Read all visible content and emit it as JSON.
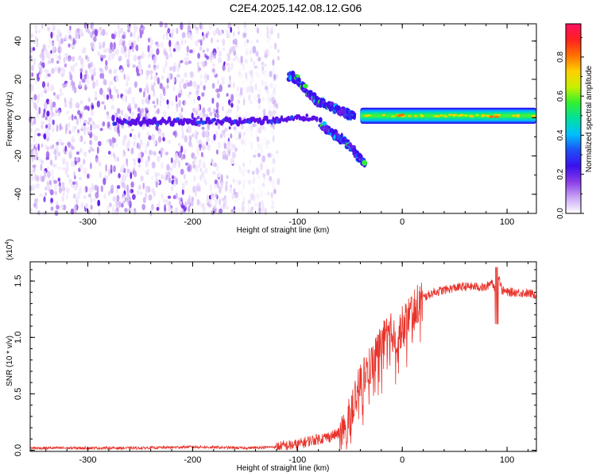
{
  "title": "C2E4.2025.142.08.12.G06",
  "chart_data": [
    {
      "type": "heatmap",
      "xlabel": "Height of straight line (km)",
      "ylabel": "Frequency (Hz)",
      "xlim": [
        -355,
        128
      ],
      "ylim": [
        -50,
        49
      ],
      "xticks": [
        -300,
        -200,
        -100,
        0,
        100
      ],
      "xtick_labels": [
        "-300",
        "-200",
        "-100",
        "0",
        "100"
      ],
      "yticks": [
        -40,
        -20,
        0,
        20,
        40
      ],
      "ytick_labels": [
        "-40",
        "-20",
        "0",
        "20",
        "40"
      ],
      "colorbar": {
        "label": "Normalized spectral amplitude",
        "range": [
          0,
          0.97
        ],
        "ticks": [
          0,
          0.2,
          0.4,
          0.6,
          0.8
        ],
        "tick_labels": [
          "0.0",
          "0.2",
          "0.4",
          "0.6",
          "0.8"
        ],
        "colors": [
          "#ffffff",
          "#c9a6f5",
          "#8a3ce6",
          "#3a10f0",
          "#1e4ff5",
          "#00c0ff",
          "#00e0a0",
          "#30f030",
          "#c8f000",
          "#ffd000",
          "#ff7000",
          "#ff2020",
          "#ff1060"
        ]
      },
      "features": [
        {
          "name": "noise",
          "x_range": [
            -355,
            -118
          ],
          "y_range": [
            -50,
            49
          ]
        },
        {
          "name": "carrier-line",
          "x_range": [
            -40,
            128
          ],
          "y_center": 1,
          "half_width": 3
        },
        {
          "name": "branch-upper",
          "points": [
            [
              -108,
              22
            ],
            [
              -100,
              20
            ],
            [
              -93,
              15
            ],
            [
              -82,
              9
            ],
            [
              -70,
              6
            ],
            [
              -60,
              4
            ],
            [
              -52,
              2
            ],
            [
              -45,
              0
            ]
          ]
        },
        {
          "name": "branch-lower",
          "points": [
            [
              -78,
              -3
            ],
            [
              -68,
              -8
            ],
            [
              -58,
              -11
            ],
            [
              -50,
              -15
            ],
            [
              -42,
              -20
            ],
            [
              -35,
              -24
            ]
          ]
        },
        {
          "name": "central-streak",
          "points": [
            [
              -275,
              -2
            ],
            [
              -200,
              -2
            ],
            [
              -150,
              -2
            ],
            [
              -120,
              -1
            ],
            [
              -100,
              0
            ],
            [
              -80,
              0
            ]
          ]
        }
      ]
    },
    {
      "type": "line",
      "xlabel": "Height of straight line (km)",
      "ylabel": "SNR (10 * v/v)",
      "ymultiplier": "(x10",
      "ymultiplier_exp": "4",
      "ymultiplier_close": ")",
      "xlim": [
        -355,
        128
      ],
      "ylim": [
        -0.01,
        1.67
      ],
      "xticks": [
        -300,
        -200,
        -100,
        0,
        100
      ],
      "xtick_labels": [
        "-300",
        "-200",
        "-100",
        "0",
        "100"
      ],
      "yticks": [
        0,
        0.5,
        1.0,
        1.5
      ],
      "ytick_labels": [
        "0.0",
        "0.5",
        "1.0",
        "1.5"
      ],
      "color": "#e8322a",
      "series": [
        {
          "x": [
            -355,
            -300,
            -250,
            -200,
            -150,
            -120,
            -100,
            -90,
            -80,
            -70,
            -60,
            -55,
            -50,
            -45,
            -40,
            -35,
            -30,
            -25,
            -20,
            -15,
            -10,
            -5,
            0,
            10,
            20,
            30,
            40,
            50,
            60,
            70,
            80,
            85,
            88,
            90,
            92,
            95,
            100,
            110,
            120,
            128
          ],
          "y": [
            0.02,
            0.02,
            0.02,
            0.03,
            0.02,
            0.03,
            0.05,
            0.08,
            0.1,
            0.12,
            0.15,
            0.2,
            0.3,
            0.45,
            0.6,
            0.7,
            0.75,
            0.85,
            0.95,
            1.0,
            1.05,
            1.0,
            1.1,
            1.25,
            1.35,
            1.4,
            1.42,
            1.44,
            1.45,
            1.45,
            1.44,
            1.5,
            1.45,
            1.4,
            1.55,
            1.42,
            1.4,
            1.4,
            1.39,
            1.38
          ]
        }
      ]
    }
  ]
}
